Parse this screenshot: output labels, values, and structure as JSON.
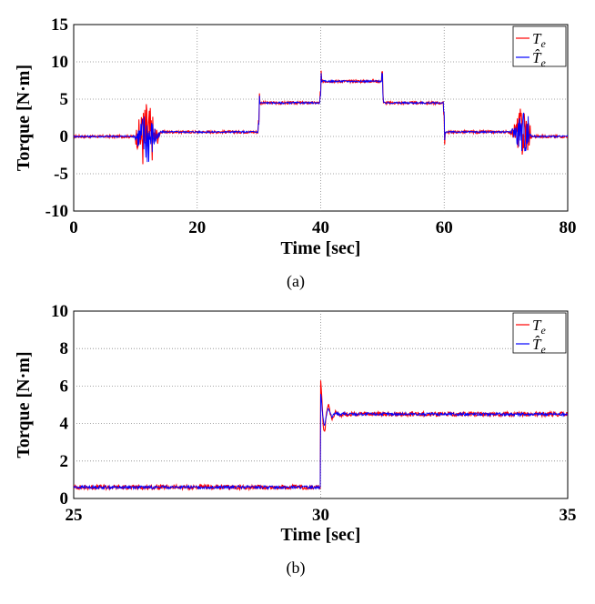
{
  "chart_data": [
    {
      "type": "line",
      "caption": "(a)",
      "xlabel": "Time [sec]",
      "ylabel": "Torque [N·m]",
      "xlim": [
        0,
        80
      ],
      "ylim": [
        -10,
        15
      ],
      "xticks": [
        0,
        20,
        40,
        60,
        80
      ],
      "yticks": [
        -10,
        -5,
        0,
        5,
        10,
        15
      ],
      "grid": "dotted",
      "legend": "top-right",
      "series": [
        {
          "name": "T_e",
          "color": "#ff0000",
          "steps": [
            [
              0,
              0
            ],
            [
              10,
              0
            ],
            [
              14,
              0.6
            ],
            [
              30,
              4.5
            ],
            [
              40,
              7.4
            ],
            [
              50,
              4.5
            ],
            [
              60,
              0.6
            ],
            [
              70,
              0.6
            ],
            [
              74,
              0
            ],
            [
              80,
              0
            ]
          ]
        },
        {
          "name": "T̂_e",
          "color": "#0000ff",
          "steps": [
            [
              0,
              0
            ],
            [
              10,
              0
            ],
            [
              14,
              0.6
            ],
            [
              30,
              4.5
            ],
            [
              40,
              7.4
            ],
            [
              50,
              4.5
            ],
            [
              60,
              0.6
            ],
            [
              70,
              0.6
            ],
            [
              74,
              0
            ],
            [
              80,
              0
            ]
          ]
        }
      ]
    },
    {
      "type": "line",
      "caption": "(b)",
      "xlabel": "Time [sec]",
      "ylabel": "Torque [N·m]",
      "xlim": [
        25,
        35
      ],
      "ylim": [
        0,
        10
      ],
      "xticks": [
        25,
        30,
        35
      ],
      "yticks": [
        0,
        2,
        4,
        6,
        8,
        10
      ],
      "grid": "dotted",
      "legend": "top-right",
      "series": [
        {
          "name": "T_e",
          "color": "#ff0000",
          "steps": [
            [
              25,
              0.6
            ],
            [
              30,
              0.6
            ],
            [
              30.05,
              6.2
            ],
            [
              30.2,
              3.6
            ],
            [
              30.35,
              5.0
            ],
            [
              30.5,
              4.5
            ],
            [
              35,
              4.5
            ]
          ]
        },
        {
          "name": "T̂_e",
          "color": "#0000ff",
          "steps": [
            [
              25,
              0.6
            ],
            [
              30,
              0.6
            ],
            [
              30.05,
              5.5
            ],
            [
              30.2,
              3.8
            ],
            [
              30.35,
              4.8
            ],
            [
              30.5,
              4.5
            ],
            [
              35,
              4.5
            ]
          ]
        }
      ]
    }
  ]
}
